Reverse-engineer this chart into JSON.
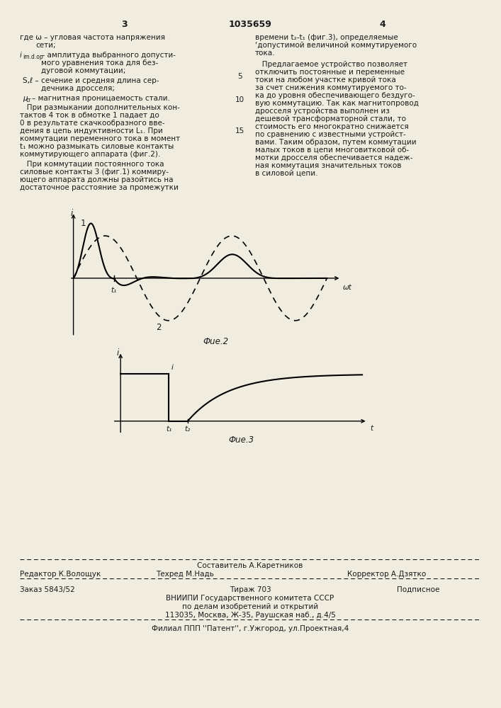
{
  "bg_color": "#f0ece0",
  "text_color": "#1a1a1a",
  "header_patent_num": "1035659",
  "header_pages": [
    "3",
    "4"
  ],
  "fig2_caption": "Фue.2",
  "fig3_caption": "Фue.3",
  "footer_compiler": "Составитель А.Каретников",
  "footer_editor": "Редактор К.Волощук",
  "footer_tekhred": "Техред М.Надь",
  "footer_corrector": "Корректор А.Дзятко",
  "footer_order": "Заказ 5843/52",
  "footer_tirazh": "Тираж 703",
  "footer_podpisnoe": "Подписное",
  "footer_vniip1": "ВНИИПИ Государственного комитета СССР",
  "footer_vniip2": "по делам изобретений и открытий",
  "footer_address": "113035, Москва, Ж-35, Раушская наб., д.4/5",
  "footer_filial": "Филиал ППП ''Патент'', г.Ужгород, ул.Проектная,4"
}
